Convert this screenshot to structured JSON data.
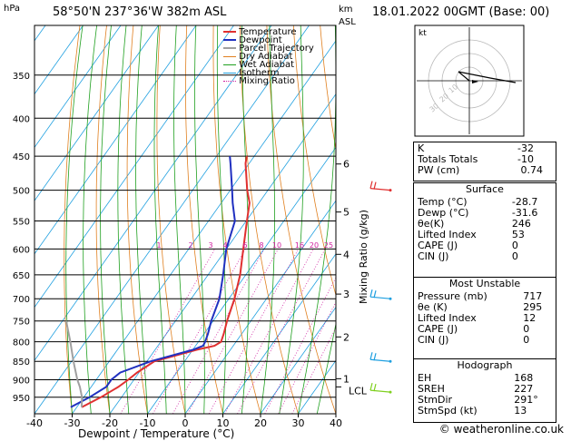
{
  "header": {
    "hpa_label": "hPa",
    "location": "58°50'N  237°36'W  382m  ASL",
    "km_label": "km",
    "asl_label": "ASL",
    "datetime": "18.01.2022  00GMT  (Base: 00)"
  },
  "chart_data": {
    "type": "line",
    "title": "58°50'N  237°36'W  382m  ASL",
    "xlabel": "Dewpoint / Temperature (°C)",
    "ylabel": "hPa",
    "xlim": [
      -40,
      40
    ],
    "ylim": [
      1000,
      300
    ],
    "xticks": [
      -40,
      -30,
      -20,
      -10,
      0,
      10,
      20,
      30,
      40
    ],
    "pressure_levels": [
      350,
      400,
      450,
      500,
      550,
      600,
      650,
      700,
      750,
      800,
      850,
      900,
      950
    ],
    "km_ticks": [
      {
        "km": "1",
        "p": 897
      },
      {
        "km": "2",
        "p": 788
      },
      {
        "km": "3",
        "p": 690
      },
      {
        "km": "4",
        "p": 610
      },
      {
        "km": "5",
        "p": 535
      },
      {
        "km": "6",
        "p": 461
      }
    ],
    "lcl": {
      "label": "LCL",
      "p": 920
    },
    "mixing_ratio_label": "Mixing Ratio (g/kg)",
    "mixing_ratio_values": [
      "1",
      "2",
      "3",
      "4",
      "6",
      "8",
      "10",
      "16",
      "20",
      "25"
    ],
    "legend": [
      "Temperature",
      "Dewpoint",
      "Parcel Trajectory",
      "Dry Adiabat",
      "Wet Adiabat",
      "Isotherm",
      "Mixing Ratio"
    ],
    "series": [
      {
        "name": "Temperature",
        "color": "#e03030",
        "points": [
          [
            980,
            -28.7
          ],
          [
            950,
            -25.5
          ],
          [
            920,
            -22.8
          ],
          [
            900,
            -21.5
          ],
          [
            880,
            -20.5
          ],
          [
            850,
            -18
          ],
          [
            820,
            -9
          ],
          [
            810,
            -5
          ],
          [
            800,
            -4
          ],
          [
            780,
            -4.8
          ],
          [
            750,
            -6.3
          ],
          [
            700,
            -8.5
          ],
          [
            650,
            -11.5
          ],
          [
            600,
            -15.5
          ],
          [
            550,
            -19.8
          ],
          [
            520,
            -22.5
          ],
          [
            500,
            -25.5
          ],
          [
            460,
            -31
          ],
          [
            450,
            -32
          ]
        ]
      },
      {
        "name": "Dewpoint",
        "color": "#2030c0",
        "points": [
          [
            980,
            -31.6
          ],
          [
            950,
            -28.5
          ],
          [
            920,
            -26
          ],
          [
            900,
            -26
          ],
          [
            880,
            -25
          ],
          [
            850,
            -19
          ],
          [
            820,
            -10
          ],
          [
            810,
            -8
          ],
          [
            800,
            -8.2
          ],
          [
            780,
            -9
          ],
          [
            750,
            -10.5
          ],
          [
            700,
            -12.5
          ],
          [
            650,
            -16
          ],
          [
            600,
            -20
          ],
          [
            550,
            -23
          ],
          [
            520,
            -27
          ],
          [
            500,
            -29.5
          ],
          [
            460,
            -35
          ],
          [
            450,
            -36.5
          ]
        ]
      },
      {
        "name": "Parcel Trajectory",
        "color": "#a0a0a0",
        "points": [
          [
            980,
            -28.7
          ],
          [
            950,
            -30.5
          ],
          [
            920,
            -33
          ],
          [
            900,
            -35
          ],
          [
            850,
            -39.5
          ],
          [
            800,
            -44
          ],
          [
            750,
            -49
          ]
        ]
      }
    ]
  },
  "colors": {
    "temperature": "#e03030",
    "dewpoint": "#2030c0",
    "parcel": "#a0a0a0",
    "dry_adiabat": "#e08020",
    "wet_adiabat": "#20a020",
    "isotherm": "#20a0e0",
    "mixing_ratio": "#d020a0"
  },
  "indices": {
    "rows": [
      {
        "label": "K",
        "value": "-32"
      },
      {
        "label": "Totals Totals",
        "value": "-10"
      },
      {
        "label": "PW (cm)",
        "value": "0.74"
      }
    ]
  },
  "surface": {
    "title": "Surface",
    "rows": [
      {
        "label": "Temp (°C)",
        "value": "-28.7"
      },
      {
        "label": "Dewp (°C)",
        "value": "-31.6"
      },
      {
        "label": "θe(K)",
        "value": "246"
      },
      {
        "label": "Lifted Index",
        "value": "53"
      },
      {
        "label": "CAPE (J)",
        "value": "0"
      },
      {
        "label": "CIN (J)",
        "value": "0"
      }
    ]
  },
  "most_unstable": {
    "title": "Most Unstable",
    "rows": [
      {
        "label": "Pressure (mb)",
        "value": "717"
      },
      {
        "label": "θe (K)",
        "value": "295"
      },
      {
        "label": "Lifted Index",
        "value": "12"
      },
      {
        "label": "CAPE (J)",
        "value": "0"
      },
      {
        "label": "CIN (J)",
        "value": "0"
      }
    ]
  },
  "hodograph_table": {
    "title": "Hodograph",
    "rows": [
      {
        "label": "EH",
        "value": "168"
      },
      {
        "label": "SREH",
        "value": "227"
      },
      {
        "label": "StmDir",
        "value": "291°"
      },
      {
        "label": "StmSpd (kt)",
        "value": "13"
      }
    ]
  },
  "hodograph": {
    "label": "kt",
    "ring_labels": [
      "10",
      "20",
      "30"
    ]
  },
  "footer": {
    "credit": "© weatheronline.co.uk"
  }
}
